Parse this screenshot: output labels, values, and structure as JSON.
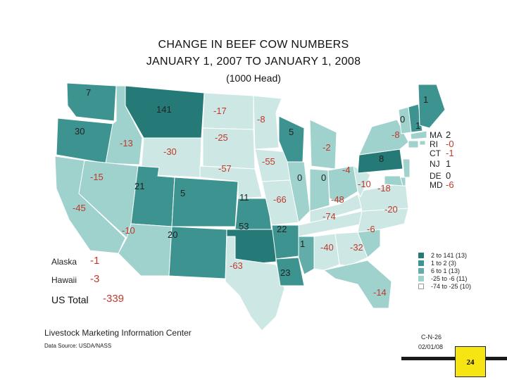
{
  "title": {
    "line1": "CHANGE  IN  BEEF  COW  NUMBERS",
    "line2": "JANUARY  1,  2007  TO  JANUARY  1,  2008",
    "line3": "(1000 Head)"
  },
  "colors": {
    "darkest": "#257a77",
    "dark": "#3c9390",
    "mid": "#62ada9",
    "light": "#9fd1cd",
    "lightest": "#cde8e4",
    "positive_text": "#222222",
    "negative_text": "#c0392b"
  },
  "states": [
    {
      "id": "WA",
      "value": "7",
      "cls": "dark"
    },
    {
      "id": "OR",
      "value": "30",
      "cls": "dark"
    },
    {
      "id": "CA",
      "value": "-45",
      "cls": "light"
    },
    {
      "id": "ID",
      "value": "-13",
      "cls": "light"
    },
    {
      "id": "NV",
      "value": "-15",
      "cls": "light"
    },
    {
      "id": "MT",
      "value": "141",
      "cls": "darkest"
    },
    {
      "id": "WY",
      "value": "-30",
      "cls": "lightest"
    },
    {
      "id": "UT",
      "value": "21",
      "cls": "dark"
    },
    {
      "id": "AZ",
      "value": "-10",
      "cls": "light"
    },
    {
      "id": "CO",
      "value": "5",
      "cls": "dark"
    },
    {
      "id": "NM",
      "value": "20",
      "cls": "dark"
    },
    {
      "id": "ND",
      "value": "-17",
      "cls": "lightest"
    },
    {
      "id": "SD",
      "value": "-25",
      "cls": "lightest"
    },
    {
      "id": "NE",
      "value": "-57",
      "cls": "lightest"
    },
    {
      "id": "KS",
      "value": "11",
      "cls": "dark"
    },
    {
      "id": "OK",
      "value": "53",
      "cls": "darkest"
    },
    {
      "id": "TX",
      "value": "-63",
      "cls": "lightest"
    },
    {
      "id": "MN",
      "value": "-8",
      "cls": "lightest"
    },
    {
      "id": "IA",
      "value": "-55",
      "cls": "lightest"
    },
    {
      "id": "MO",
      "value": "-66",
      "cls": "lightest"
    },
    {
      "id": "AR",
      "value": "22",
      "cls": "dark"
    },
    {
      "id": "LA",
      "value": "23",
      "cls": "dark"
    },
    {
      "id": "WI",
      "value": "5",
      "cls": "dark"
    },
    {
      "id": "IL",
      "value": "0",
      "cls": "light"
    },
    {
      "id": "MI",
      "value": "-2",
      "cls": "light"
    },
    {
      "id": "IN",
      "value": "0",
      "cls": "light"
    },
    {
      "id": "OH",
      "value": "-4",
      "cls": "light"
    },
    {
      "id": "KY",
      "value": "-48",
      "cls": "lightest"
    },
    {
      "id": "TN",
      "value": "-74",
      "cls": "lightest"
    },
    {
      "id": "MS",
      "value": "1",
      "cls": "mid"
    },
    {
      "id": "AL",
      "value": "-40",
      "cls": "lightest"
    },
    {
      "id": "GA",
      "value": "-32",
      "cls": "lightest"
    },
    {
      "id": "FL",
      "value": "-14",
      "cls": "light"
    },
    {
      "id": "SC",
      "value": "-6",
      "cls": "light"
    },
    {
      "id": "NC",
      "value": "-20",
      "cls": "lightest"
    },
    {
      "id": "VA",
      "value": "-18",
      "cls": "lightest"
    },
    {
      "id": "WV",
      "value": "-10",
      "cls": "lightest"
    },
    {
      "id": "PA",
      "value": "8",
      "cls": "darkest"
    },
    {
      "id": "NY",
      "value": "-8",
      "cls": "light"
    },
    {
      "id": "VT",
      "value": "0",
      "cls": "light"
    },
    {
      "id": "NH",
      "value": "1",
      "cls": "dark"
    },
    {
      "id": "ME",
      "value": "1",
      "cls": "dark"
    }
  ],
  "northeast": {
    "MA": {
      "abbr": "MA",
      "value": "2"
    },
    "RI": {
      "abbr": "RI",
      "value": "-0"
    },
    "CT": {
      "abbr": "CT",
      "value": "-1"
    },
    "NJ": {
      "abbr": "NJ",
      "value": "1"
    },
    "DE": {
      "abbr": "DE",
      "value": "0"
    },
    "MD": {
      "abbr": "MD",
      "value": "-6"
    }
  },
  "side": {
    "alaska_label": "Alaska",
    "alaska_value": "-1",
    "hawaii_label": "Hawaii",
    "hawaii_value": "-3",
    "us_total_label": "US Total",
    "us_total_value": "-339"
  },
  "legend": [
    {
      "range": "2 to 141",
      "count": "(13)",
      "cls": "darkest"
    },
    {
      "range": "1 to    2",
      "count": "(3)",
      "cls": "dark"
    },
    {
      "range": "6 to    1",
      "count": "(13)",
      "cls": "mid"
    },
    {
      "range": "-25 to   -6",
      "count": "(11)",
      "cls": "light"
    },
    {
      "range": "-74 to -25",
      "count": "(10)",
      "cls": "lightest"
    }
  ],
  "footer": {
    "org": "Livestock Marketing Information Center",
    "source": "Data Source:  USDA/NASS",
    "code": "C-N-26",
    "date": "02/01/08",
    "page": "24"
  }
}
